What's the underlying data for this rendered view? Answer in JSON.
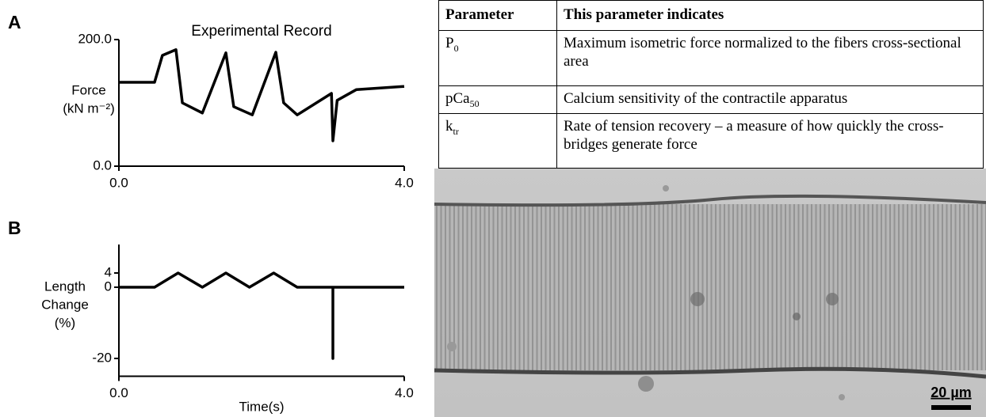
{
  "chart_data": [
    {
      "panel": "A",
      "type": "line",
      "title": "Experimental Record",
      "ylabel": [
        "Force",
        "(kN m⁻²)"
      ],
      "x": [
        0,
        0.5,
        0.61,
        0.8,
        0.89,
        1.17,
        1.5,
        1.61,
        1.87,
        2.2,
        2.31,
        2.5,
        2.98,
        3.0,
        3.06,
        3.33,
        4.0
      ],
      "series": [
        {
          "color": "#000000",
          "values": [
            132.5,
            132.5,
            175,
            184,
            100,
            84,
            179,
            94,
            81,
            180,
            100,
            81,
            115,
            40,
            104,
            121,
            126
          ]
        }
      ],
      "xlim": [
        0,
        4
      ],
      "ylim": [
        0,
        200
      ],
      "xticks": [
        {
          "value": 0,
          "label": "0.0"
        },
        {
          "value": 4,
          "label": "4.0"
        }
      ],
      "yticks": [
        {
          "value": 0,
          "label": "0.0"
        },
        {
          "value": 200,
          "label": "200.0"
        }
      ]
    },
    {
      "panel": "B",
      "type": "line",
      "xlabel": "Time(s)",
      "ylabel": [
        "Length",
        "Change",
        "(%)"
      ],
      "x": [
        0,
        0.5,
        0.83,
        1.17,
        1.5,
        1.83,
        2.17,
        2.5,
        3.0,
        3.0,
        3.0,
        4.0
      ],
      "series": [
        {
          "color": "#000000",
          "values": [
            0,
            0,
            4,
            0,
            4,
            0,
            4,
            0,
            0,
            -20,
            0,
            0
          ]
        }
      ],
      "xlim": [
        0,
        4
      ],
      "ylim": [
        -25,
        12
      ],
      "xticks": [
        {
          "value": 0,
          "label": "0.0"
        },
        {
          "value": 4,
          "label": "4.0"
        }
      ],
      "yticks": [
        4,
        0,
        -20
      ]
    }
  ],
  "table": {
    "header": [
      "Parameter",
      "This parameter indicates"
    ],
    "rows": [
      [
        {
          "symbol": "P",
          "subscript": "0"
        },
        "Maximum isometric force normalized to the fibers cross-sectional area"
      ],
      [
        {
          "symbol": "pCa",
          "subscript": "50"
        },
        "Calcium sensitivity of the contractile apparatus"
      ],
      [
        {
          "symbol": "k",
          "subscript": "tr"
        },
        "Rate of tension recovery – a measure of how quickly the cross-bridges generate force"
      ]
    ]
  },
  "micrograph": {
    "scale_bar": "20 µm"
  }
}
